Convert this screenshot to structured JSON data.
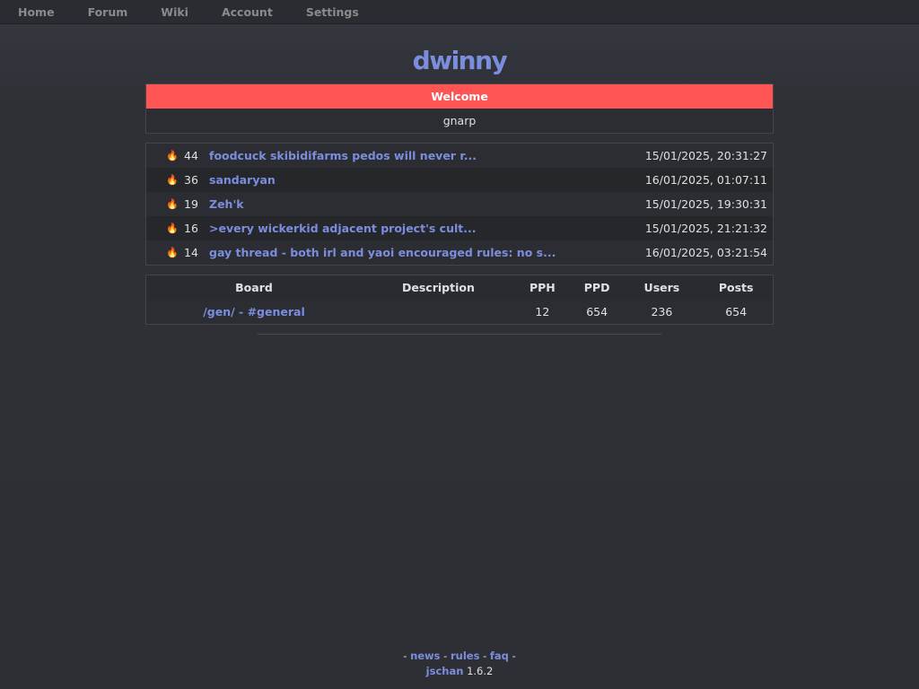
{
  "nav": [
    "Home",
    "Forum",
    "Wiki",
    "Account",
    "Settings"
  ],
  "site_title": "dwinny",
  "welcome": {
    "title": "Welcome",
    "body": "gnarp"
  },
  "hot_threads": [
    {
      "replies": "44",
      "subject": "foodcuck skibidifarms pedos will never r...",
      "date": "15/01/2025, 20:31:27"
    },
    {
      "replies": "36",
      "subject": "sandaryan",
      "date": "16/01/2025, 01:07:11"
    },
    {
      "replies": "19",
      "subject": "Zeh'k",
      "date": "15/01/2025, 19:30:31"
    },
    {
      "replies": "16",
      "subject": ">every wickerkid adjacent project's cult...",
      "date": "15/01/2025, 21:21:32"
    },
    {
      "replies": "14",
      "subject": "gay thread - both irl and yaoi encouraged rules: no s...",
      "date": "16/01/2025, 03:21:54"
    }
  ],
  "boards": {
    "headers": [
      "Board",
      "Description",
      "PPH",
      "PPD",
      "Users",
      "Posts"
    ],
    "rows": [
      {
        "board": "/gen/ - #general",
        "description": "",
        "pph": "12",
        "ppd": "654",
        "users": "236",
        "posts": "654"
      }
    ]
  },
  "footer": {
    "links": [
      "news",
      "rules",
      "faq"
    ],
    "software": "jschan",
    "version": "1.6.2"
  },
  "colors": {
    "accent": "#7b8ede",
    "welcome": "#ff5454"
  }
}
